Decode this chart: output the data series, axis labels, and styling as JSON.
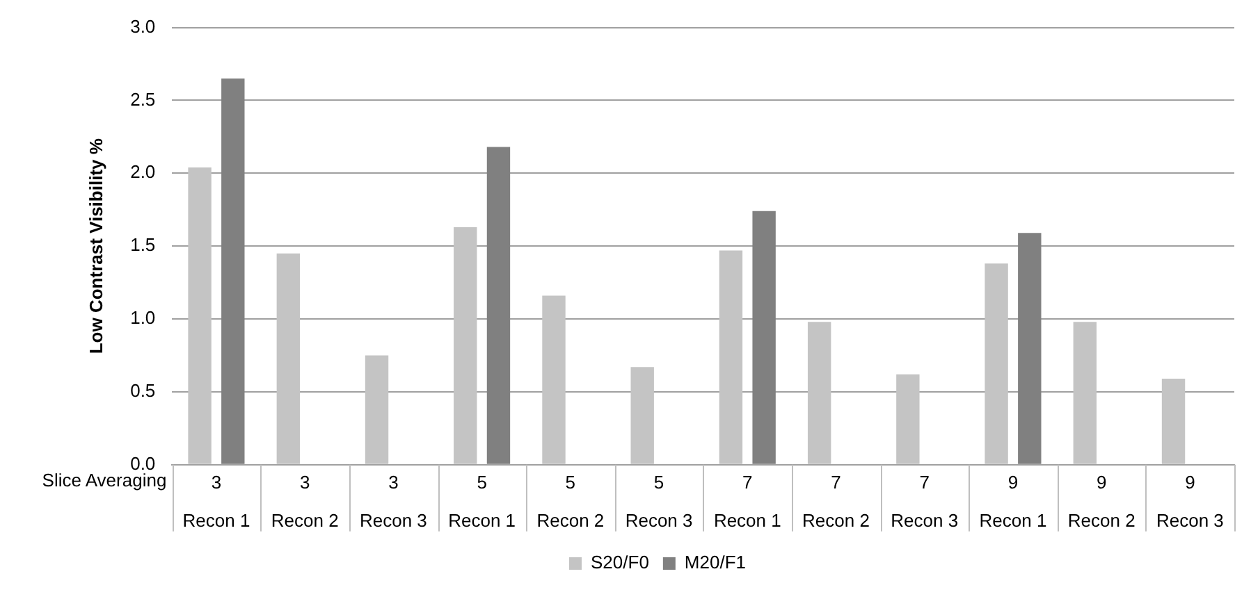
{
  "chart_data": {
    "type": "bar",
    "ylabel": "Low Contrast Visibility %",
    "categories": [
      "3\nRecon 1",
      "3\nRecon 2",
      "3\nRecon 3",
      "5\nRecon 1",
      "5\nRecon 2",
      "5\nRecon 3",
      "7\nRecon 1",
      "7\nRecon 2",
      "7\nRecon 3",
      "9\nRecon 1",
      "9\nRecon 2",
      "9\nRecon 3"
    ],
    "series": [
      {
        "name": "S20/F0",
        "color": "#c4c4c4",
        "values": [
          2.04,
          1.45,
          0.75,
          1.63,
          1.16,
          0.67,
          1.47,
          0.98,
          0.62,
          1.38,
          0.98,
          0.59
        ]
      },
      {
        "name": "M20/F1",
        "color": "#808080",
        "values": [
          2.65,
          null,
          null,
          2.18,
          null,
          null,
          1.74,
          null,
          null,
          1.59,
          null,
          null
        ]
      }
    ],
    "ylim": [
      0,
      3
    ],
    "yticks": [
      {
        "value": 0,
        "label": "0.0"
      },
      {
        "value": 0.5,
        "label": "0.5"
      },
      {
        "value": 1,
        "label": "1.0"
      },
      {
        "value": 1.5,
        "label": "1.5"
      },
      {
        "value": 2,
        "label": "2.0"
      },
      {
        "value": 2.5,
        "label": "2.5"
      },
      {
        "value": 3,
        "label": "3.0"
      }
    ],
    "annotations": [
      "Slice Averaging"
    ],
    "grid": "y",
    "legend": "bottom"
  }
}
